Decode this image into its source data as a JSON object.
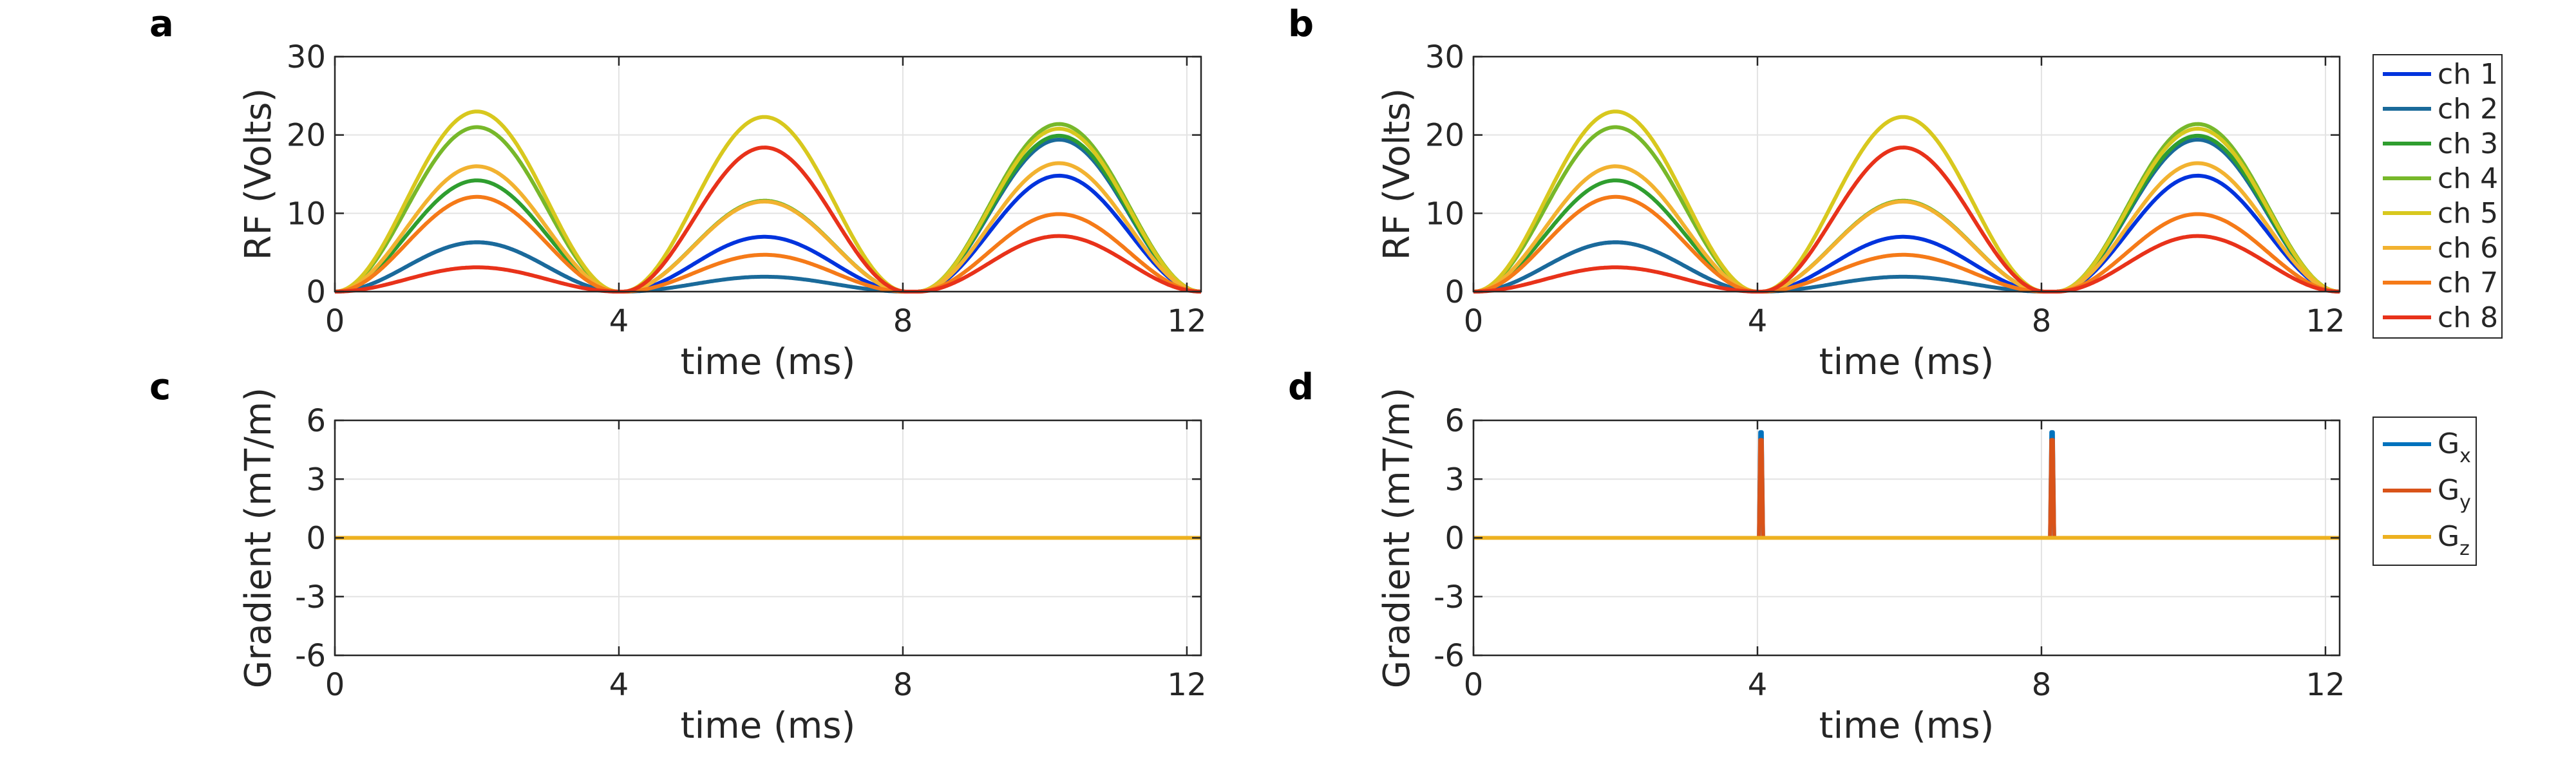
{
  "chart_data": [
    {
      "panel": "a",
      "type": "line",
      "xlabel": "time (ms)",
      "ylabel": "RF (Volts)",
      "xlim": [
        0,
        12.2
      ],
      "ylim": [
        0,
        30
      ],
      "xticks": [
        "0",
        "4",
        "8",
        "12"
      ],
      "yticks": [
        "0",
        "10",
        "20",
        "30"
      ],
      "grid": true,
      "pulse_width_ms": 4,
      "pulse_centers_ms": [
        2,
        6.05,
        10.2
      ],
      "series": [
        {
          "name": "ch 1",
          "color": "#0033dd",
          "peaks": [
            6.3,
            7.0,
            14.8
          ]
        },
        {
          "name": "ch 2",
          "color": "#1a6a9a",
          "peaks": [
            6.3,
            1.9,
            19.4
          ]
        },
        {
          "name": "ch 3",
          "color": "#2f9e2f",
          "peaks": [
            14.2,
            11.6,
            19.9
          ]
        },
        {
          "name": "ch 4",
          "color": "#77b82a",
          "peaks": [
            21.0,
            11.6,
            21.4
          ]
        },
        {
          "name": "ch 5",
          "color": "#d8c81e",
          "peaks": [
            23.0,
            22.3,
            20.8
          ]
        },
        {
          "name": "ch 6",
          "color": "#f2b230",
          "peaks": [
            16.0,
            11.5,
            16.4
          ]
        },
        {
          "name": "ch 7",
          "color": "#f57a18",
          "peaks": [
            12.1,
            4.7,
            9.9
          ]
        },
        {
          "name": "ch 8",
          "color": "#e8321a",
          "peaks": [
            3.1,
            18.4,
            7.1
          ]
        }
      ]
    },
    {
      "panel": "b",
      "type": "line",
      "xlabel": "time (ms)",
      "ylabel": "RF (Volts)",
      "xlim": [
        0,
        12.2
      ],
      "ylim": [
        0,
        30
      ],
      "xticks": [
        "0",
        "4",
        "8",
        "12"
      ],
      "yticks": [
        "0",
        "10",
        "20",
        "30"
      ],
      "grid": true,
      "legend": "right",
      "pulse_width_ms": 4,
      "pulse_centers_ms": [
        2,
        6.05,
        10.2
      ],
      "series": [
        {
          "name": "ch 1",
          "color": "#0033dd",
          "peaks": [
            6.3,
            7.0,
            14.8
          ]
        },
        {
          "name": "ch 2",
          "color": "#1a6a9a",
          "peaks": [
            6.3,
            1.9,
            19.4
          ]
        },
        {
          "name": "ch 3",
          "color": "#2f9e2f",
          "peaks": [
            14.2,
            11.6,
            19.9
          ]
        },
        {
          "name": "ch 4",
          "color": "#77b82a",
          "peaks": [
            21.0,
            11.6,
            21.4
          ]
        },
        {
          "name": "ch 5",
          "color": "#d8c81e",
          "peaks": [
            23.0,
            22.3,
            20.8
          ]
        },
        {
          "name": "ch 6",
          "color": "#f2b230",
          "peaks": [
            16.0,
            11.5,
            16.4
          ]
        },
        {
          "name": "ch 7",
          "color": "#f57a18",
          "peaks": [
            12.1,
            4.7,
            9.9
          ]
        },
        {
          "name": "ch 8",
          "color": "#e8321a",
          "peaks": [
            3.1,
            18.4,
            7.1
          ]
        }
      ]
    },
    {
      "panel": "c",
      "type": "line",
      "xlabel": "time (ms)",
      "ylabel": "Gradient (mT/m)",
      "xlim": [
        0,
        12.2
      ],
      "ylim": [
        -6,
        6
      ],
      "xticks": [
        "0",
        "4",
        "8",
        "12"
      ],
      "yticks": [
        "-6",
        "-3",
        "0",
        "3",
        "6"
      ],
      "grid": true,
      "series": [
        {
          "name": "Gx",
          "color": "#0072bd",
          "spikes": []
        },
        {
          "name": "Gy",
          "color": "#d95319",
          "spikes": []
        },
        {
          "name": "Gz",
          "color": "#edb120",
          "spikes": []
        }
      ]
    },
    {
      "panel": "d",
      "type": "line",
      "xlabel": "time (ms)",
      "ylabel": "Gradient (mT/m)",
      "xlim": [
        0,
        12.2
      ],
      "ylim": [
        -6,
        6
      ],
      "xticks": [
        "0",
        "4",
        "8",
        "12"
      ],
      "yticks": [
        "-6",
        "-3",
        "0",
        "3",
        "6"
      ],
      "grid": true,
      "legend": "right",
      "series": [
        {
          "name": "Gx",
          "color": "#0072bd",
          "spikes": [
            {
              "t": 4.05,
              "amp": 5.4
            },
            {
              "t": 8.15,
              "amp": 5.4
            }
          ]
        },
        {
          "name": "Gy",
          "color": "#d95319",
          "spikes": [
            {
              "t": 4.05,
              "amp": 5.0
            },
            {
              "t": 8.15,
              "amp": 5.0
            }
          ]
        },
        {
          "name": "Gz",
          "color": "#edb120",
          "spikes": []
        }
      ]
    }
  ],
  "gradient_legend": [
    {
      "base": "G",
      "sub": "x"
    },
    {
      "base": "G",
      "sub": "y"
    },
    {
      "base": "G",
      "sub": "z"
    }
  ]
}
